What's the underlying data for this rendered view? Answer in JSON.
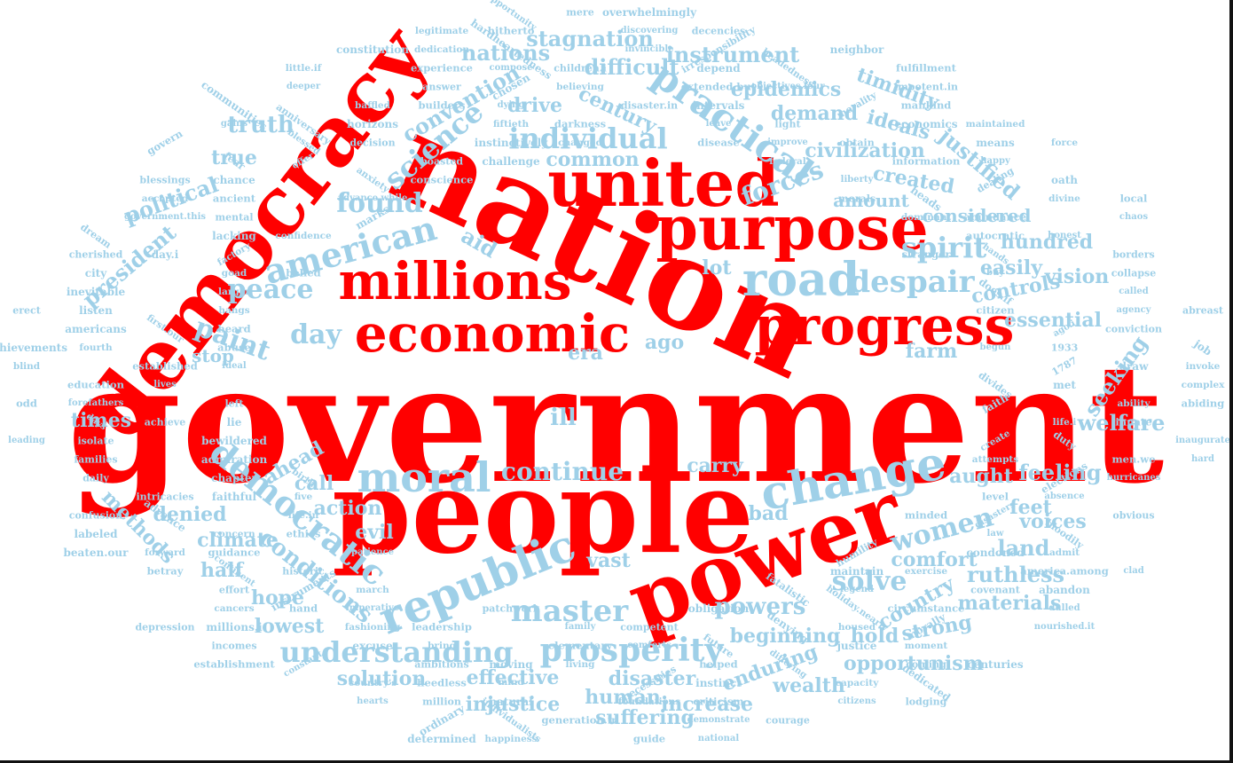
{
  "colors": {
    "primary": "#ff0000",
    "secondary": "#9fd0e8",
    "background": "#ffffff"
  },
  "words": [
    "government",
    "nation",
    "people",
    "democracy",
    "power",
    "united",
    "purpose",
    "millions",
    "economic",
    "progress",
    "road",
    "republic",
    "change",
    "moral",
    "practical",
    "democratic",
    "american",
    "understanding",
    "prosperity",
    "master",
    "science",
    "individual",
    "spirit",
    "despair",
    "continue",
    "peace",
    "found",
    "women",
    "paint",
    "day",
    "solve",
    "forces",
    "conditions",
    "political",
    "president",
    "convention",
    "truth",
    "stagnation",
    "difficult",
    "instrument",
    "nations",
    "epidemics",
    "timidity",
    "century",
    "drive",
    "demand",
    "civilization",
    "ideals",
    "justified",
    "created",
    "amount",
    "considered",
    "hundred",
    "easily",
    "controls",
    "vision",
    "essential",
    "seeking",
    "welfare",
    "feeling",
    "feet",
    "voices",
    "land",
    "comfort",
    "ruthless",
    "country",
    "materials",
    "strong",
    "hold",
    "beginning",
    "powers",
    "opportunism",
    "enduring",
    "wealth",
    "disaster",
    "human",
    "increase",
    "suffering",
    "injustice",
    "effective",
    "solution",
    "lowest",
    "hope",
    "half",
    "climate",
    "denied",
    "methods",
    "times",
    "ahead",
    "call",
    "action",
    "evil",
    "vast",
    "bad",
    "carry",
    "aught",
    "ill",
    "era",
    "farm",
    "ago",
    "stop",
    "lot",
    "aid",
    "true",
    "common"
  ],
  "small_words": [
    "opportunity",
    "mere",
    "overwhelmingly",
    "legitimate",
    "hitherto",
    "discovering",
    "decencies",
    "constitution",
    "dedication",
    "hardheartedness",
    "invincible",
    "irresponsibility",
    "neighbor",
    "little.if",
    "experience",
    "compose",
    "children.i",
    "depend",
    "headedness",
    "fulfillment",
    "deeper",
    "answer",
    "chosen",
    "believing",
    "extended.but",
    "objectives.four",
    "impotent.in",
    "communities",
    "baffled",
    "builders",
    "dying",
    "disaster.in",
    "intervals",
    "morality",
    "mankind",
    "gains",
    "anniversary",
    "horizons",
    "fiftieth",
    "darkness",
    "leave",
    "light",
    "economics",
    "maintained",
    "govern",
    "blessed",
    "decision",
    "instinctively",
    "changed",
    "disease",
    "improve",
    "obtain",
    "means",
    "force",
    "fear",
    "offer",
    "boasted",
    "challenge",
    "federal",
    "information",
    "happy",
    "blessings",
    "chance",
    "anxiety",
    "conscience",
    "liberty",
    "dealing",
    "oath",
    "accepted",
    "ancient",
    "advance.while",
    "morals",
    "heads",
    "divine",
    "local",
    "government.this",
    "mental",
    "marks",
    "dominant",
    "abundance",
    "chaos",
    "dream",
    "lacking",
    "confidence",
    "autocratic",
    "honest",
    "cherished",
    "day.i",
    "factory",
    "stranger",
    "hands",
    "borders",
    "city",
    "goad",
    "belied",
    "buy",
    "collapse",
    "inevitable",
    "larger",
    "does.if",
    "called",
    "erect",
    "listen",
    "hangs",
    "citizen",
    "agency",
    "abreast",
    "americans",
    "first.our",
    "heard",
    "ago.i",
    "conviction",
    "achievements",
    "fourth",
    "abuse",
    "begun",
    "1933",
    "job",
    "blind",
    "established",
    "ideal",
    "1787",
    "draw",
    "invoke",
    "education",
    "lives",
    "divides",
    "met",
    "complex",
    "odd",
    "forefathers",
    "left",
    "faith",
    "ability",
    "abiding",
    "days",
    "achieve",
    "lie",
    "life.i",
    "innate",
    "leading",
    "isolate",
    "bewildered",
    "create",
    "duty",
    "inaugurate",
    "families",
    "admiration",
    "attempts",
    "men.we",
    "hard",
    "daily",
    "chapter",
    "birth",
    "elections",
    "hurricanes",
    "intricacies",
    "faithful",
    "five",
    "level",
    "absence",
    "confusion",
    "advance",
    "life.in",
    "minded",
    "disasters",
    "obvious",
    "labeled",
    "concern",
    "ethics",
    "law",
    "bloodily",
    "beaten.our",
    "forward",
    "guidance",
    "patience",
    "humility",
    "condoned",
    "admit",
    "betray",
    "continent",
    "historic",
    "maintain",
    "exercise",
    "america.among",
    "clad",
    "effort",
    "instruments",
    "march",
    "fatalistic",
    "legend",
    "covenant",
    "abandon",
    "cancers",
    "hand",
    "imperative",
    "patchwork",
    "obligation",
    "holiday.nearly",
    "circumstance",
    "dulled",
    "depression",
    "millions.i",
    "fashioning",
    "leadership",
    "family",
    "competent",
    "denying",
    "housed",
    "morally",
    "nourished.it",
    "incomes",
    "excuse",
    "bring",
    "elementary",
    "comforts",
    "future",
    "justice",
    "moment",
    "establishment",
    "constant",
    "ambitions",
    "moving",
    "living",
    "helped",
    "differing",
    "coming",
    "centuries",
    "country's",
    "heedless",
    "mind",
    "necessities",
    "instinct",
    "capacity",
    "dedicated",
    "hearts",
    "million",
    "natural",
    "foundations",
    "criticism",
    "citizens",
    "lodging",
    "ordinary",
    "individualists",
    "generation.in",
    "demonstrate",
    "courage",
    "determined",
    "happiness",
    "guide",
    "national"
  ]
}
